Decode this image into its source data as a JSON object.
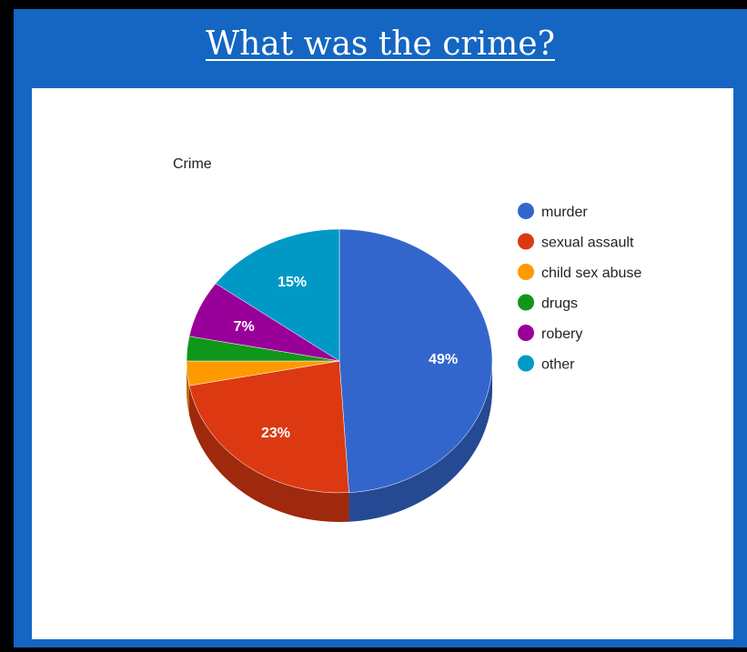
{
  "header": {
    "title": "What was the crime?"
  },
  "chart_data": {
    "type": "pie",
    "style": "3d",
    "title": "Crime",
    "legend_position": "right",
    "slices": [
      {
        "label": "murder",
        "value": 49,
        "display": "49%",
        "color": "#3366cc"
      },
      {
        "label": "sexual assault",
        "value": 23,
        "display": "23%",
        "color": "#dc3912"
      },
      {
        "label": "child sex abuse",
        "value": 3,
        "display": "",
        "color": "#ff9900"
      },
      {
        "label": "drugs",
        "value": 3,
        "display": "",
        "color": "#109618"
      },
      {
        "label": "robery",
        "value": 7,
        "display": "7%",
        "color": "#990099"
      },
      {
        "label": "other",
        "value": 15,
        "display": "15%",
        "color": "#0099c6"
      }
    ]
  }
}
